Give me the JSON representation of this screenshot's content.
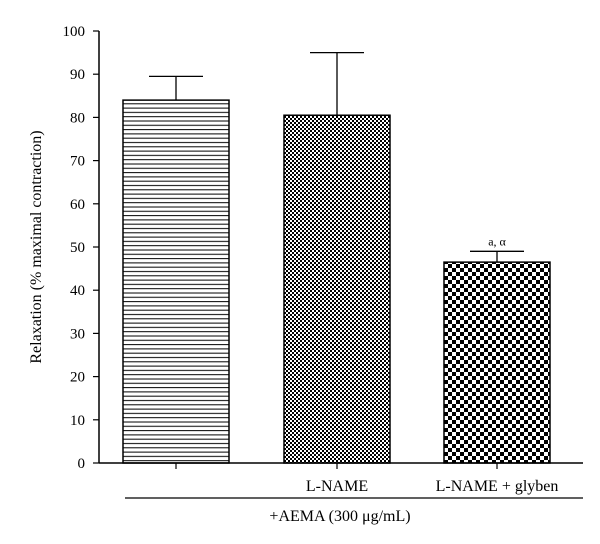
{
  "chart_data": {
    "type": "bar",
    "title": "",
    "ylabel": "Relaxation (% maximal contraction)",
    "xlabel": "+AEMA (300 μg/mL)",
    "ylim": [
      0,
      100
    ],
    "yticks": [
      0,
      10,
      20,
      30,
      40,
      50,
      60,
      70,
      80,
      90,
      100
    ],
    "grid": false,
    "categories": [
      "",
      "L-NAME",
      "L-NAME + glyben"
    ],
    "values": [
      84,
      80.5,
      46.5
    ],
    "error_upper": [
      89.5,
      95,
      49
    ],
    "fill_patterns": [
      "horizontal-lines",
      "fine-checker",
      "coarse-checker"
    ],
    "annotations": [
      {
        "category_index": 2,
        "text": "a, α"
      }
    ]
  },
  "colors": {
    "stroke": "#000000",
    "background": "#ffffff"
  }
}
